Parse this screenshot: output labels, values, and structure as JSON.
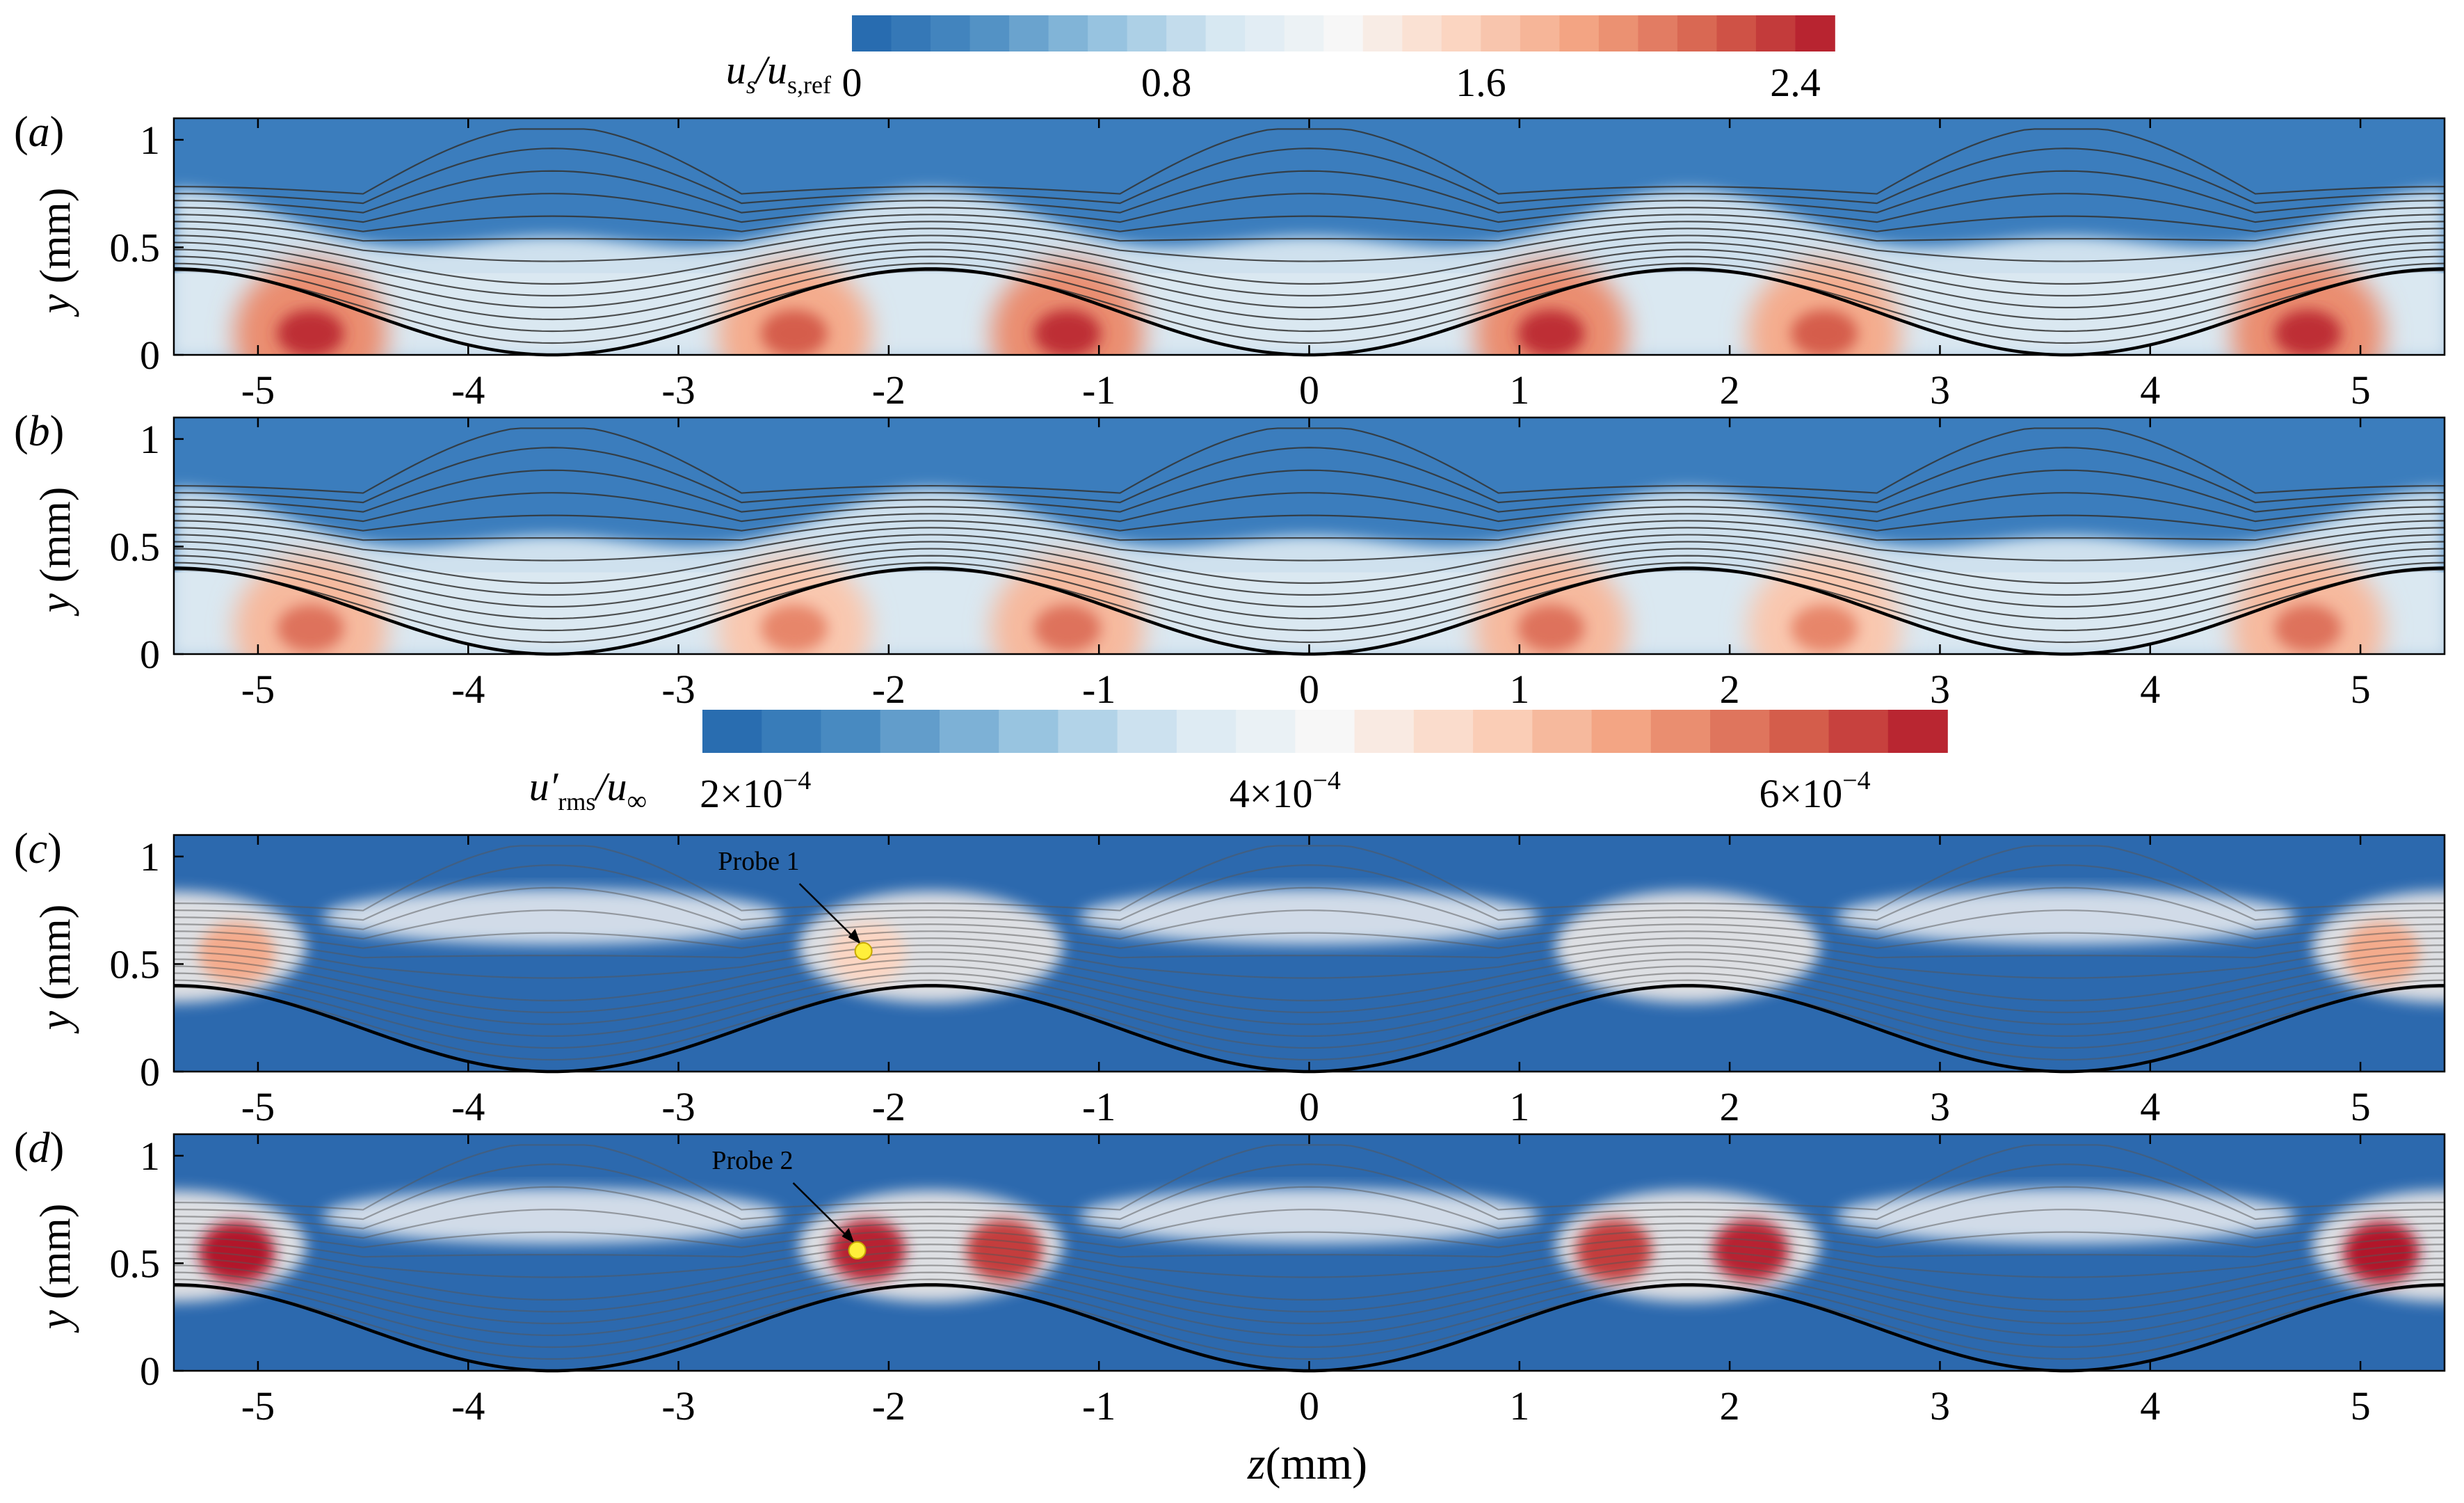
{
  "chart_data": {
    "type": "heatmap",
    "shared": {
      "xlabel": "z(mm)",
      "ylabel": "y (mm)",
      "xlim": [
        -5.4,
        5.4
      ],
      "ylim": [
        0,
        1.1
      ],
      "xticks": [
        "-5",
        "-4",
        "-3",
        "-2",
        "-1",
        "0",
        "1",
        "2",
        "3",
        "4",
        "5"
      ],
      "xtick_values": [
        -5,
        -4,
        -3,
        -2,
        -1,
        0,
        1,
        2,
        3,
        4,
        5
      ],
      "yticks": [
        "0",
        "0.5",
        "1"
      ],
      "ytick_values": [
        0,
        0.5,
        1
      ],
      "wall_curve": {
        "amplitude_mm": 0.4,
        "period_mm": 3.6,
        "peaks_at": [
          -5.4,
          -1.8,
          1.8,
          5.4
        ],
        "zeros_at": [
          -3.6,
          0,
          3.6
        ]
      },
      "colormap_stops": [
        "#2166ac",
        "#4a8cc2",
        "#92c0de",
        "#d6e7f2",
        "#f7f7f7",
        "#fbd4bf",
        "#f2a07e",
        "#d6604d",
        "#b2182b"
      ]
    },
    "colorbars": [
      {
        "name": "streamwise velocity",
        "label_main": "u",
        "label_sub1": "s",
        "label_sep": "/u",
        "label_sub2": "s,ref",
        "min": 0,
        "max": 2.5,
        "ticks": [
          "0",
          "0.8",
          "1.6",
          "2.4"
        ],
        "tick_values": [
          0,
          0.8,
          1.6,
          2.4
        ]
      },
      {
        "name": "rms fluctuation",
        "label_main": "u′",
        "label_sub1": "rms",
        "label_sep": "/u",
        "label_sub2": "∞",
        "min": 0.00018,
        "max": 0.00065,
        "ticks": [
          "2×10",
          "4×10",
          "6×10"
        ],
        "tick_exponent": "−4",
        "tick_values": [
          0.0002,
          0.0004,
          0.0006
        ]
      }
    ],
    "panels": [
      {
        "id": "a",
        "label": "(a)",
        "field": "u_s/u_s,ref",
        "colorbar": 0,
        "hotspots": [
          {
            "z": -4.75,
            "y": 0.1,
            "value": 2.4
          },
          {
            "z": -2.45,
            "y": 0.1,
            "value": 2.2
          },
          {
            "z": -1.15,
            "y": 0.1,
            "value": 2.4
          },
          {
            "z": 1.15,
            "y": 0.1,
            "value": 2.4
          },
          {
            "z": 2.45,
            "y": 0.1,
            "value": 2.2
          },
          {
            "z": 4.75,
            "y": 0.1,
            "value": 2.4
          }
        ],
        "annotations": []
      },
      {
        "id": "b",
        "label": "(b)",
        "field": "u_s/u_s,ref",
        "colorbar": 0,
        "hotspots": [
          {
            "z": -4.75,
            "y": 0.12,
            "value": 2.1
          },
          {
            "z": -2.45,
            "y": 0.12,
            "value": 2.0
          },
          {
            "z": -1.15,
            "y": 0.12,
            "value": 2.1
          },
          {
            "z": 1.15,
            "y": 0.12,
            "value": 2.1
          },
          {
            "z": 2.45,
            "y": 0.12,
            "value": 2.0
          },
          {
            "z": 4.75,
            "y": 0.12,
            "value": 2.1
          }
        ],
        "annotations": []
      },
      {
        "id": "c",
        "label": "(c)",
        "field": "u'_rms/u_inf",
        "colorbar": 1,
        "hotspots": [
          {
            "z": -5.1,
            "y": 0.55,
            "value": 0.00052
          },
          {
            "z": -2.1,
            "y": 0.55,
            "value": 0.00047
          },
          {
            "z": 5.1,
            "y": 0.55,
            "value": 0.00052
          }
        ],
        "annotations": [
          {
            "text": "Probe 1",
            "z": -2.12,
            "y": 0.56
          }
        ]
      },
      {
        "id": "d",
        "label": "(d)",
        "field": "u'_rms/u_inf",
        "colorbar": 1,
        "hotspots": [
          {
            "z": -5.1,
            "y": 0.55,
            "value": 0.00065
          },
          {
            "z": -2.1,
            "y": 0.56,
            "value": 0.00064
          },
          {
            "z": -1.45,
            "y": 0.56,
            "value": 0.00062
          },
          {
            "z": 1.45,
            "y": 0.56,
            "value": 0.00062
          },
          {
            "z": 2.1,
            "y": 0.56,
            "value": 0.00064
          },
          {
            "z": 5.1,
            "y": 0.55,
            "value": 0.00065
          }
        ],
        "annotations": [
          {
            "text": "Probe 2",
            "z": -2.15,
            "y": 0.56
          }
        ]
      }
    ]
  }
}
